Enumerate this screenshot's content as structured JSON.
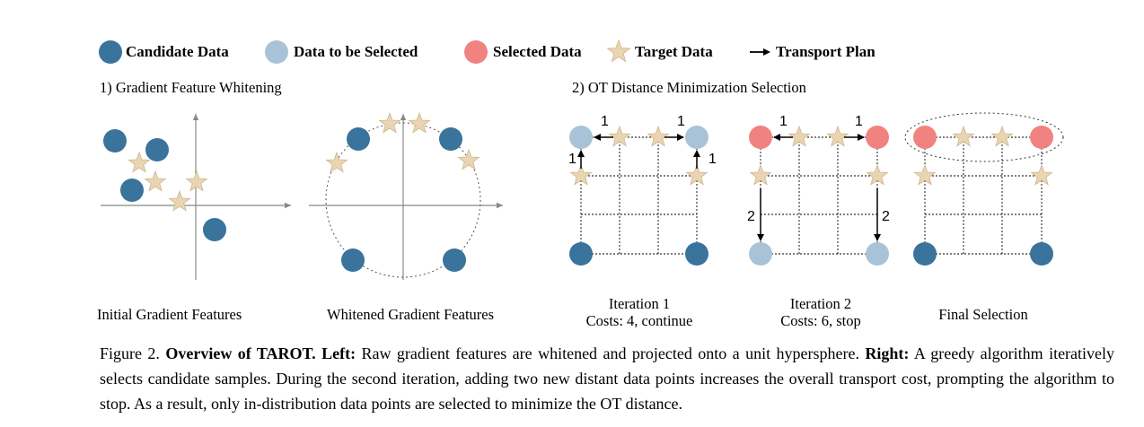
{
  "colors": {
    "candidate": "#3a739c",
    "to_select": "#a8c3d7",
    "selected": "#f0837f",
    "target": "#ead5b2",
    "target_stroke": "#cfb68f"
  },
  "legend": {
    "candidate": "Candidate Data",
    "to_select": "Data to be Selected",
    "selected": "Selected Data",
    "target": "Target Data",
    "transport": "Transport Plan"
  },
  "left": {
    "title": "1) Gradient Feature Whitening",
    "panel1_label": "Initial Gradient Features",
    "panel2_label": "Whitened Gradient Features"
  },
  "right": {
    "title": "2) OT Distance Minimization Selection",
    "iter1_line1": "Iteration 1",
    "iter1_line2": "Costs: 4, continue",
    "iter2_line1": "Iteration 2",
    "iter2_line2": "Costs: 6, stop",
    "final_label": "Final Selection",
    "iter1_costs": [
      "1",
      "1",
      "1",
      "1"
    ],
    "iter2_costs": [
      "1",
      "1",
      "2",
      "2"
    ]
  },
  "caption": {
    "prefix": "Figure 2.",
    "title": "Overview of TAROT.",
    "left_tag": "Left:",
    "left_text": "Raw gradient features are whitened and projected onto a unit hypersphere.",
    "right_tag": "Right:",
    "right_text": "A greedy algorithm iteratively selects candidate samples. During the second iteration, adding two new distant data points increases the overall transport cost, prompting the algorithm to stop. As a result, only in-distribution data points are selected to minimize the OT distance."
  }
}
